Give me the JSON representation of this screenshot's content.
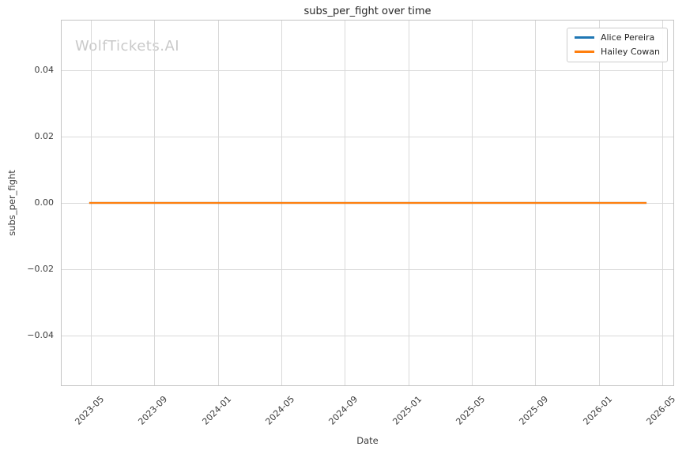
{
  "watermark": "WolfTickets.AI",
  "chart_data": {
    "type": "line",
    "title": "subs_per_fight over time",
    "xlabel": "Date",
    "ylabel": "subs_per_fight",
    "grid": true,
    "legend_position": "upper right",
    "x_tick_labels": [
      "2023-05",
      "2023-09",
      "2024-01",
      "2024-05",
      "2024-09",
      "2025-01",
      "2025-05",
      "2025-09",
      "2026-01",
      "2026-05"
    ],
    "x_tick_values": [
      2023.3333,
      2023.6667,
      2024.0,
      2024.3333,
      2024.6667,
      2025.0,
      2025.3333,
      2025.6667,
      2026.0,
      2026.3333
    ],
    "xlim": [
      2023.176,
      2026.396
    ],
    "y_tick_labels": [
      "0.04",
      "0.02",
      "0.00",
      "−0.02",
      "−0.04"
    ],
    "y_tick_values": [
      0.04,
      0.02,
      0.0,
      -0.02,
      -0.04
    ],
    "ylim": [
      -0.0554,
      0.0554
    ],
    "series": [
      {
        "name": "Alice Pereira",
        "color": "#1f77b4",
        "x": [
          2023.325,
          2026.251
        ],
        "y": [
          0.0,
          0.0
        ]
      },
      {
        "name": "Hailey Cowan",
        "color": "#ff7f0e",
        "x": [
          2023.325,
          2026.251
        ],
        "y": [
          0.0,
          0.0
        ]
      }
    ],
    "colors": {
      "grid": "#d9d9d9",
      "spine": "#c4c4c4",
      "watermark": "#c9c9c9",
      "tick_text": "#3b3b3b",
      "title_text": "#262626"
    }
  }
}
